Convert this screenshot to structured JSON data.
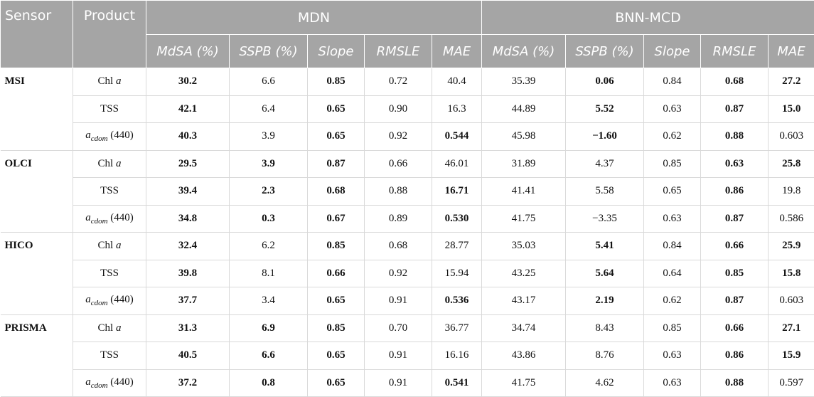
{
  "header": {
    "sensor": "Sensor",
    "product": "Product",
    "groups": [
      "MDN",
      "BNN-MCD"
    ],
    "metrics": [
      "MdSA (%)",
      "SSPB (%)",
      "Slope",
      "RMSLE",
      "MAE",
      "MdSA (%)",
      "SSPB (%)",
      "Slope",
      "RMSLE",
      "MAE"
    ]
  },
  "body": [
    {
      "sensor": "MSI",
      "rows": [
        {
          "product": [
            {
              "text": "Chl "
            },
            {
              "text": "a",
              "style": "italic"
            }
          ],
          "cells": [
            "30.2",
            "6.6",
            "0.85",
            "0.72",
            "40.4",
            "35.39",
            "0.06",
            "0.84",
            "0.68",
            "27.2"
          ],
          "bold": [
            true,
            false,
            true,
            false,
            false,
            false,
            true,
            false,
            true,
            true
          ]
        },
        {
          "product": [
            {
              "text": "TSS"
            }
          ],
          "cells": [
            "42.1",
            "6.4",
            "0.65",
            "0.90",
            "16.3",
            "44.89",
            "5.52",
            "0.63",
            "0.87",
            "15.0"
          ],
          "bold": [
            true,
            false,
            true,
            false,
            false,
            false,
            true,
            false,
            true,
            true
          ]
        },
        {
          "product": [
            {
              "text": "a",
              "style": "italic"
            },
            {
              "text": "cdom",
              "style": "sub"
            },
            {
              "text": " (440)"
            }
          ],
          "cells": [
            "40.3",
            "3.9",
            "0.65",
            "0.92",
            "0.544",
            "45.98",
            "−1.60",
            "0.62",
            "0.88",
            "0.603"
          ],
          "bold": [
            true,
            false,
            true,
            false,
            true,
            false,
            true,
            false,
            true,
            false
          ]
        }
      ]
    },
    {
      "sensor": "OLCI",
      "rows": [
        {
          "product": [
            {
              "text": "Chl "
            },
            {
              "text": "a",
              "style": "italic"
            }
          ],
          "cells": [
            "29.5",
            "3.9",
            "0.87",
            "0.66",
            "46.01",
            "31.89",
            "4.37",
            "0.85",
            "0.63",
            "25.8"
          ],
          "bold": [
            true,
            true,
            true,
            false,
            false,
            false,
            false,
            false,
            true,
            true
          ]
        },
        {
          "product": [
            {
              "text": "TSS"
            }
          ],
          "cells": [
            "39.4",
            "2.3",
            "0.68",
            "0.88",
            "16.71",
            "41.41",
            "5.58",
            "0.65",
            "0.86",
            "19.8"
          ],
          "bold": [
            true,
            true,
            true,
            false,
            true,
            false,
            false,
            false,
            true,
            false
          ]
        },
        {
          "product": [
            {
              "text": "a",
              "style": "italic"
            },
            {
              "text": "cdom",
              "style": "sub"
            },
            {
              "text": " (440)"
            }
          ],
          "cells": [
            "34.8",
            "0.3",
            "0.67",
            "0.89",
            "0.530",
            "41.75",
            "−3.35",
            "0.63",
            "0.87",
            "0.586"
          ],
          "bold": [
            true,
            true,
            true,
            false,
            true,
            false,
            false,
            false,
            true,
            false
          ]
        }
      ]
    },
    {
      "sensor": "HICO",
      "rows": [
        {
          "product": [
            {
              "text": "Chl "
            },
            {
              "text": "a",
              "style": "italic"
            }
          ],
          "cells": [
            "32.4",
            "6.2",
            "0.85",
            "0.68",
            "28.77",
            "35.03",
            "5.41",
            "0.84",
            "0.66",
            "25.9"
          ],
          "bold": [
            true,
            false,
            true,
            false,
            false,
            false,
            true,
            false,
            true,
            true
          ]
        },
        {
          "product": [
            {
              "text": "TSS"
            }
          ],
          "cells": [
            "39.8",
            "8.1",
            "0.66",
            "0.92",
            "15.94",
            "43.25",
            "5.64",
            "0.64",
            "0.85",
            "15.8"
          ],
          "bold": [
            true,
            false,
            true,
            false,
            false,
            false,
            true,
            false,
            true,
            true
          ]
        },
        {
          "product": [
            {
              "text": "a",
              "style": "italic"
            },
            {
              "text": "cdom",
              "style": "sub"
            },
            {
              "text": " (440)"
            }
          ],
          "cells": [
            "37.7",
            "3.4",
            "0.65",
            "0.91",
            "0.536",
            "43.17",
            "2.19",
            "0.62",
            "0.87",
            "0.603"
          ],
          "bold": [
            true,
            false,
            true,
            false,
            true,
            false,
            true,
            false,
            true,
            false
          ]
        }
      ]
    },
    {
      "sensor": "PRISMA",
      "rows": [
        {
          "product": [
            {
              "text": "Chl "
            },
            {
              "text": "a",
              "style": "italic"
            }
          ],
          "cells": [
            "31.3",
            "6.9",
            "0.85",
            "0.70",
            "36.77",
            "34.74",
            "8.43",
            "0.85",
            "0.66",
            "27.1"
          ],
          "bold": [
            true,
            true,
            true,
            false,
            false,
            false,
            false,
            false,
            true,
            true
          ]
        },
        {
          "product": [
            {
              "text": "TSS"
            }
          ],
          "cells": [
            "40.5",
            "6.6",
            "0.65",
            "0.91",
            "16.16",
            "43.86",
            "8.76",
            "0.63",
            "0.86",
            "15.9"
          ],
          "bold": [
            true,
            true,
            true,
            false,
            false,
            false,
            false,
            false,
            true,
            true
          ]
        },
        {
          "product": [
            {
              "text": "a",
              "style": "italic"
            },
            {
              "text": "cdom",
              "style": "sub"
            },
            {
              "text": " (440)"
            }
          ],
          "cells": [
            "37.2",
            "0.8",
            "0.65",
            "0.91",
            "0.541",
            "41.75",
            "4.62",
            "0.63",
            "0.88",
            "0.597"
          ],
          "bold": [
            true,
            true,
            true,
            false,
            true,
            false,
            false,
            false,
            true,
            false
          ]
        }
      ]
    }
  ]
}
